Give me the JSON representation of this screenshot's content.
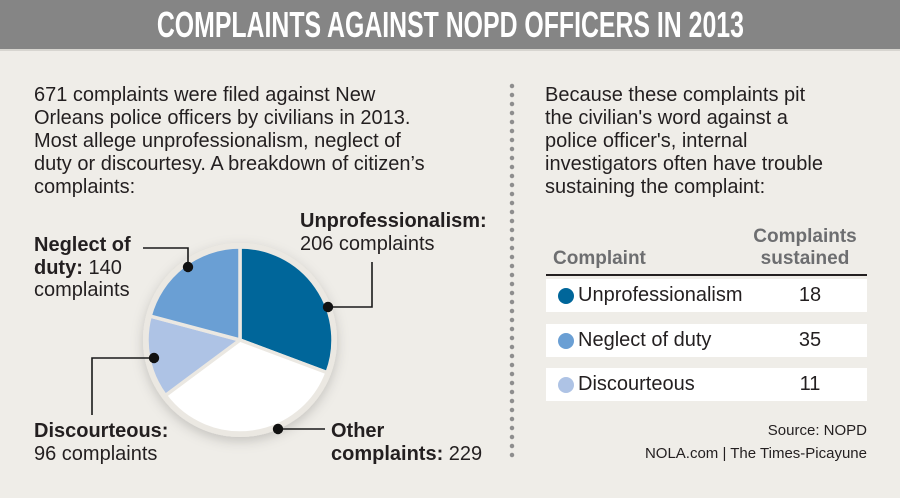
{
  "header": {
    "title": "COMPLAINTS AGAINST NOPD OFFICERS IN 2013"
  },
  "left_intro": {
    "lines": [
      "671 complaints were filed against New",
      "Orleans police officers by civilians in 2013.",
      "Most allege unprofessionalism, neglect of",
      "duty or discourtesy. A breakdown of citizen’s",
      "complaints:"
    ]
  },
  "right_intro": {
    "lines": [
      "Because these complaints pit",
      "the civilian's word against a",
      "police officer's, internal",
      "investigators often have trouble",
      "sustaining the complaint:"
    ]
  },
  "pie_labels": {
    "neglect": {
      "line1_bold": "Neglect of",
      "line2_bold": "duty:",
      "line2_value": " 140",
      "line3": "complaints"
    },
    "unprofessionalism": {
      "line1_bold": "Unprofessionalism:",
      "line2": "206 complaints"
    },
    "discourteous": {
      "line1_bold": "Discourteous:",
      "line2": "96 complaints"
    },
    "other": {
      "line1_bold": "Other",
      "line2_bold": "complaints:",
      "line2_value": " 229"
    }
  },
  "table": {
    "header_complaint": "Complaint",
    "header_sustained_line1": "Complaints",
    "header_sustained_line2": "sustained",
    "rows": [
      {
        "label": "Unprofessionalism",
        "value": "18",
        "color": "#00669a"
      },
      {
        "label": "Neglect of duty",
        "value": "35",
        "color": "#6a9fd4"
      },
      {
        "label": "Discourteous",
        "value": "11",
        "color": "#aec3e5"
      }
    ]
  },
  "footer": {
    "source": "Source: NOPD",
    "credit": "NOLA.com | The Times-Picayune"
  },
  "colors": {
    "title_bar": "#858585",
    "background": "#efede8",
    "pie_border": "#ebe8e2",
    "text": "#231f20"
  },
  "chart_data": [
    {
      "type": "pie",
      "title": "Complaints against NOPD officers in 2013",
      "subtitle": "671 complaints were filed against New Orleans police officers by civilians in 2013",
      "total": 671,
      "categories": [
        "Unprofessionalism",
        "Other complaints",
        "Discourteous",
        "Neglect of duty"
      ],
      "values": [
        206,
        229,
        96,
        140
      ],
      "colors": [
        "#00669a",
        "#ffffff",
        "#aec3e5",
        "#6a9fd4"
      ],
      "start_angle": "top, clockwise",
      "legend": "callout labels with leader lines"
    },
    {
      "type": "table",
      "title": "Complaints sustained",
      "columns": [
        "Complaint",
        "Complaints sustained"
      ],
      "categories": [
        "Unprofessionalism",
        "Neglect of duty",
        "Discourteous"
      ],
      "values": [
        18,
        35,
        11
      ]
    }
  ]
}
